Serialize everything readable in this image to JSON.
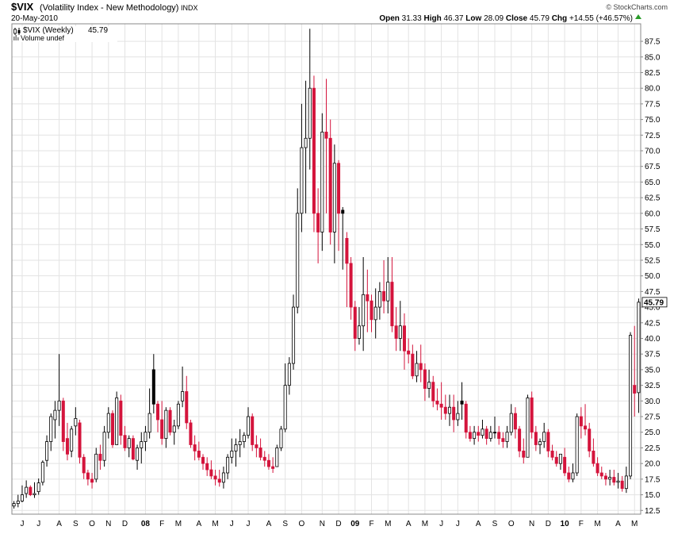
{
  "chart_data": {
    "type": "candlestick",
    "title": "$VIX",
    "subtitle": "(Volatility Index - New Methodology)",
    "exchange": "INDX",
    "date": "20-May-2010",
    "legend_label": "$VIX (Weekly)",
    "volume_label": "Volume undef",
    "credit": "© StockCharts.com",
    "quote_labels": [
      "Open",
      "High",
      "Low",
      "Close",
      "Chg"
    ],
    "change": "+14.55 (+46.57%)",
    "up_color": "#000000",
    "down_color": "#d4143c",
    "grid": true,
    "ylim": [
      11.9,
      90.3
    ],
    "yticks": [
      12.5,
      {
        "value": 15,
        "label": "15.0"
      },
      17.5,
      {
        "value": 20,
        "label": "20.0"
      },
      22.5,
      {
        "value": 25,
        "label": "25.0"
      },
      27.5,
      {
        "value": 30,
        "label": "30.0"
      },
      32.5,
      {
        "value": 35,
        "label": "35.0"
      },
      37.5,
      {
        "value": 40,
        "label": "40.0"
      },
      42.5,
      {
        "value": 45,
        "label": "45.0"
      },
      47.5,
      {
        "value": 50,
        "label": "50.0"
      },
      52.5,
      {
        "value": 55,
        "label": "55.0"
      },
      57.5,
      {
        "value": 60,
        "label": "60.0"
      },
      62.5,
      {
        "value": 65,
        "label": "65.0"
      },
      67.5,
      {
        "value": 70,
        "label": "70.0"
      },
      72.5,
      {
        "value": 75,
        "label": "75.0"
      },
      77.5,
      {
        "value": 80,
        "label": "80.0"
      },
      82.5,
      {
        "value": 85,
        "label": "85.0"
      },
      87.5
    ],
    "categories": [
      null,
      null,
      "J",
      null,
      null,
      null,
      "J",
      null,
      null,
      null,
      null,
      "A",
      null,
      null,
      null,
      "S",
      null,
      null,
      null,
      "O",
      null,
      null,
      null,
      "N",
      null,
      null,
      null,
      "D",
      null,
      null,
      null,
      null,
      "08",
      null,
      null,
      null,
      "F",
      null,
      null,
      null,
      "M",
      null,
      null,
      null,
      null,
      "A",
      null,
      null,
      null,
      "M",
      null,
      null,
      null,
      "J",
      null,
      null,
      null,
      "J",
      null,
      null,
      null,
      null,
      "A",
      null,
      null,
      null,
      "S",
      null,
      null,
      null,
      "O",
      null,
      null,
      null,
      null,
      "N",
      null,
      null,
      null,
      "D",
      null,
      null,
      null,
      "09",
      null,
      null,
      null,
      "F",
      null,
      null,
      null,
      "M",
      null,
      null,
      null,
      null,
      "A",
      null,
      null,
      null,
      "M",
      null,
      null,
      null,
      "J",
      null,
      null,
      null,
      "J",
      null,
      null,
      null,
      null,
      "A",
      null,
      null,
      null,
      "S",
      null,
      null,
      null,
      "O",
      null,
      null,
      null,
      null,
      "N",
      null,
      null,
      null,
      "D",
      null,
      null,
      null,
      "10",
      null,
      null,
      null,
      "F",
      null,
      null,
      null,
      "M",
      null,
      null,
      null,
      null,
      "A",
      null,
      null,
      null,
      "M",
      null
    ],
    "open": [
      13.2,
      13.6,
      14.0,
      15.2,
      16.2,
      15.0,
      15.5,
      17,
      20.5,
      23.5,
      27,
      28.5,
      30,
      24,
      22,
      26,
      26.5,
      21,
      18.5,
      17.5,
      17.5,
      21.5,
      20.5,
      25,
      28,
      23,
      30,
      24.5,
      22.5,
      24,
      20.5,
      22.5,
      23.5,
      25,
      35,
      29.5,
      27,
      24,
      28.5,
      25,
      26,
      30,
      31.5,
      26.5,
      23,
      22,
      21,
      20,
      19,
      18,
      17.5,
      17,
      18.5,
      21,
      22,
      23,
      23.5,
      24.5,
      27.5,
      23,
      22.5,
      21,
      20.5,
      19.5,
      19.5,
      22.5,
      25.5,
      32.5,
      36,
      45,
      60,
      70.5,
      72,
      80,
      60,
      57,
      73,
      72,
      57,
      68,
      60.5,
      56,
      52,
      45,
      40,
      42,
      47,
      46,
      43,
      45,
      47.5,
      46,
      49,
      42,
      40,
      42,
      38,
      37.5,
      34,
      36,
      35,
      32,
      33,
      30,
      29.5,
      29,
      28,
      29,
      27,
      30,
      29.5,
      25,
      24,
      25,
      24.5,
      25.5,
      24,
      25,
      25,
      24,
      23.5,
      25,
      28,
      25.5,
      22,
      21,
      30.5,
      25,
      23,
      23.5,
      25,
      22,
      21,
      20,
      21,
      18.5,
      17.5,
      18.5,
      27.5,
      26,
      25.5,
      22,
      20,
      18.5,
      18,
      17.5,
      17.8,
      17,
      17.2,
      16,
      18,
      32.5,
      31.33
    ],
    "high": [
      14.0,
      15.0,
      16.5,
      17.3,
      16.5,
      17.0,
      17.6,
      20.5,
      24.5,
      28,
      30,
      37.5,
      30.5,
      26.5,
      26,
      29,
      27,
      21.5,
      19,
      18.5,
      22.5,
      23,
      26,
      29,
      28.5,
      31.5,
      31,
      26,
      24.5,
      24.5,
      23,
      25,
      26,
      32,
      37.5,
      30,
      30,
      29,
      29,
      27,
      30,
      35.5,
      34,
      27,
      24.5,
      23.5,
      21.5,
      21,
      20.5,
      19,
      19,
      19.5,
      21.5,
      24,
      24,
      25.5,
      25,
      29,
      28,
      24.5,
      24,
      22,
      21.5,
      21,
      23,
      26,
      36,
      37,
      47,
      64,
      77.5,
      81.2,
      89.5,
      82,
      64,
      76,
      81.5,
      75,
      71,
      68.5,
      61,
      57,
      53,
      46,
      45,
      53,
      51,
      47,
      48,
      49,
      52.5,
      53,
      53,
      45,
      46,
      44,
      40,
      39,
      38,
      39,
      36,
      35,
      34,
      32,
      33,
      31,
      31,
      31,
      30,
      33,
      30,
      26,
      26,
      26,
      27,
      26,
      26,
      27.5,
      26,
      25,
      26,
      29.5,
      29,
      26,
      24,
      31,
      31.5,
      26,
      24,
      26.5,
      25.5,
      23,
      22,
      21.5,
      22.5,
      19.5,
      20,
      28,
      29,
      29.5,
      26.5,
      24,
      21,
      19.5,
      18.5,
      19,
      19,
      18.5,
      18,
      19.5,
      41,
      42,
      46.37
    ],
    "low": [
      12.8,
      13.0,
      13.8,
      14.5,
      14.8,
      14.5,
      15.0,
      16.5,
      19.5,
      22,
      24,
      26,
      22,
      20.5,
      21,
      24.5,
      20,
      17.5,
      16.5,
      16,
      17,
      19,
      19.5,
      24,
      22.5,
      23,
      23,
      22,
      21,
      20.5,
      19,
      20,
      22,
      24,
      28,
      25,
      23,
      22.5,
      24.5,
      23,
      25.5,
      29,
      25.5,
      22.5,
      20.5,
      20.5,
      19,
      18,
      17.5,
      16.5,
      16.3,
      16,
      17.5,
      20,
      19.5,
      21,
      22.5,
      24,
      22,
      21,
      20.5,
      19.5,
      19,
      18.5,
      19.5,
      22,
      25,
      31,
      35,
      44,
      57,
      60,
      67,
      57,
      52,
      54,
      60,
      55,
      52,
      54,
      51,
      45,
      43,
      38,
      39,
      38,
      41,
      41,
      40,
      43,
      44,
      44,
      41,
      38,
      38,
      35,
      36,
      33.5,
      33,
      33,
      30,
      30.5,
      29,
      28.5,
      27,
      27,
      26,
      25,
      26,
      27,
      24,
      23.5,
      23,
      23.5,
      24,
      23,
      23.5,
      24,
      23,
      22.5,
      22.5,
      24.5,
      24,
      21,
      20,
      21,
      24,
      22,
      21.5,
      22.5,
      21,
      20.5,
      19.5,
      19,
      18,
      17,
      17,
      18,
      24,
      24.5,
      21,
      19.5,
      18,
      17.5,
      16.5,
      16.5,
      16.5,
      16,
      15.5,
      15.3,
      17.5,
      27.5,
      28.09
    ],
    "close": [
      13.6,
      14.0,
      15.0,
      16.2,
      15.0,
      15.2,
      16.9,
      20.2,
      23.5,
      27.5,
      28.5,
      30,
      23.5,
      21.5,
      25.5,
      27.2,
      21,
      18.5,
      17.5,
      17,
      21.5,
      20.5,
      25,
      28,
      23,
      30.5,
      24.5,
      22.5,
      24,
      20.7,
      22.5,
      23.5,
      25,
      28,
      29.5,
      27,
      24,
      28.5,
      25,
      26,
      29.5,
      31.5,
      26.5,
      23,
      22,
      21,
      20,
      19,
      18,
      17.5,
      17,
      18.5,
      21,
      22,
      23,
      23.5,
      24.5,
      27.5,
      23,
      22.5,
      21,
      20.5,
      19.5,
      19.2,
      22.5,
      25.5,
      32.5,
      36,
      45,
      60,
      70.5,
      72,
      80,
      60,
      57,
      73,
      72,
      57,
      68,
      60,
      60,
      52,
      45,
      40,
      42,
      47,
      46,
      43,
      45,
      47.5,
      46,
      49,
      42,
      40,
      42,
      38,
      37.5,
      34,
      36,
      35,
      32,
      33,
      30,
      29.5,
      29,
      28,
      29,
      27,
      28,
      29.5,
      25,
      24,
      25,
      24.5,
      25.5,
      24,
      25,
      25,
      24,
      23.5,
      25,
      28,
      25.5,
      22,
      21,
      30.5,
      25,
      23,
      23.5,
      25,
      22,
      21,
      20,
      21.5,
      18.5,
      17.5,
      18.5,
      27.5,
      26,
      25.5,
      22,
      20,
      18.5,
      18,
      17.5,
      17.8,
      17,
      17.2,
      16,
      18,
      40.5,
      31.24,
      45.79
    ]
  }
}
